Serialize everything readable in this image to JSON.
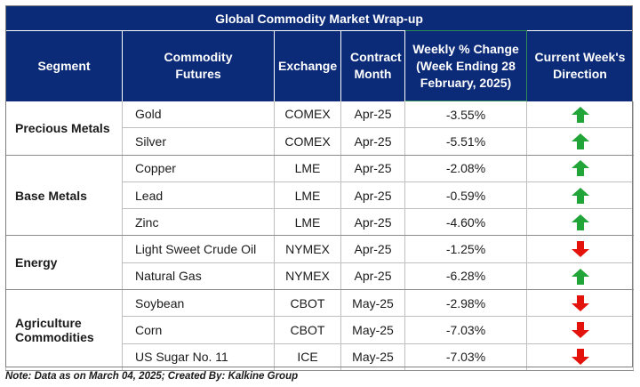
{
  "title": "Global Commodity Market Wrap-up",
  "headers": {
    "segment": "Segment",
    "futures": "Commodity Futures",
    "exchange": "Exchange",
    "contract": "Contract Month",
    "weekly": "Weekly % Change (Week Ending  28 February, 2025)",
    "direction": "Current Week's Direction"
  },
  "groups": [
    {
      "segment": "Precious Metals",
      "rows": [
        {
          "future": "Gold",
          "exchange": "COMEX",
          "month": "Apr-25",
          "change": "-3.55%",
          "direction": "up"
        },
        {
          "future": "Silver",
          "exchange": "COMEX",
          "month": "Apr-25",
          "change": "-5.51%",
          "direction": "up"
        }
      ]
    },
    {
      "segment": "Base Metals",
      "rows": [
        {
          "future": "Copper",
          "exchange": "LME",
          "month": "Apr-25",
          "change": "-2.08%",
          "direction": "up"
        },
        {
          "future": "Lead",
          "exchange": "LME",
          "month": "Apr-25",
          "change": "-0.59%",
          "direction": "up"
        },
        {
          "future": "Zinc",
          "exchange": "LME",
          "month": "Apr-25",
          "change": "-4.60%",
          "direction": "up"
        }
      ]
    },
    {
      "segment": "Energy",
      "rows": [
        {
          "future": "Light Sweet Crude Oil",
          "exchange": "NYMEX",
          "month": "Apr-25",
          "change": "-1.25%",
          "direction": "down"
        },
        {
          "future": "Natural Gas",
          "exchange": "NYMEX",
          "month": "Apr-25",
          "change": "-6.28%",
          "direction": "up"
        }
      ]
    },
    {
      "segment": "Agriculture Commodities",
      "rows": [
        {
          "future": "Soybean",
          "exchange": "CBOT",
          "month": "May-25",
          "change": "-2.98%",
          "direction": "down"
        },
        {
          "future": "Corn",
          "exchange": "CBOT",
          "month": "May-25",
          "change": "-7.03%",
          "direction": "down"
        },
        {
          "future": "US Sugar No. 11",
          "exchange": "ICE",
          "month": "May-25",
          "change": "-7.03%",
          "direction": "down"
        }
      ]
    }
  ],
  "note": "Note: Data as on March 04, 2025; Created By: Kalkine Group",
  "colors": {
    "header_bg": "#0b2a78",
    "up": "#22a538",
    "down": "#e3120b"
  }
}
